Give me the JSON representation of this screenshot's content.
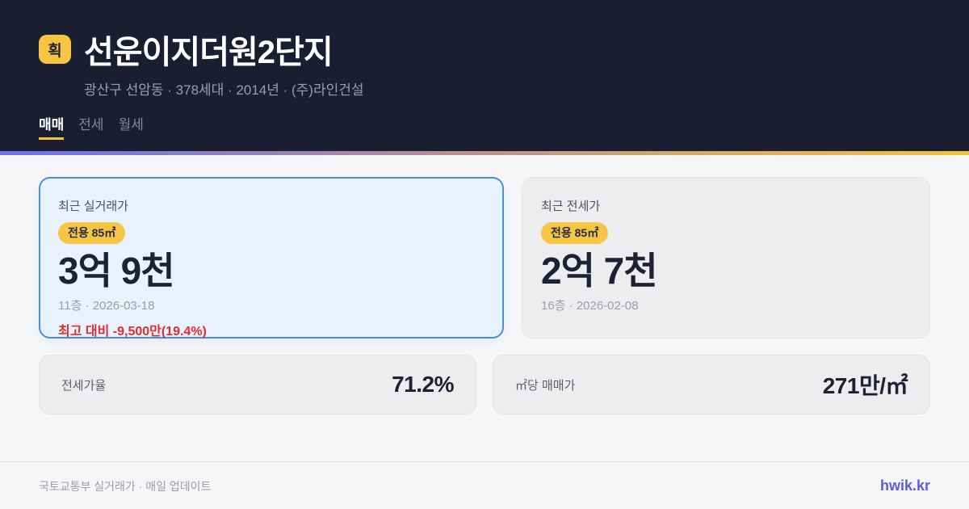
{
  "header": {
    "logo_badge": "획",
    "title": "선운이지더원2단지",
    "subtitle": "광산구 선암동 · 378세대 · 2014년 · (주)라인건설",
    "tabs": [
      {
        "label": "매매",
        "active": true
      },
      {
        "label": "전세",
        "active": false
      },
      {
        "label": "월세",
        "active": false
      }
    ]
  },
  "cards": {
    "sale": {
      "label": "최근 실거래가",
      "area_badge": "전용 85㎡",
      "price": "3억 9천",
      "meta": "11층 · 2026-03-18",
      "delta": "최고 대비 -9,500만(19.4%)"
    },
    "jeonse": {
      "label": "최근 전세가",
      "area_badge": "전용 85㎡",
      "price": "2억 7천",
      "meta": "16층 · 2026-02-08"
    }
  },
  "stats": [
    {
      "label": "전세가율",
      "value": "71.2%"
    },
    {
      "label": "㎡당 매매가",
      "value": "271만/㎡"
    }
  ],
  "footer": {
    "source": "국토교통부 실거래가 · 매일 업데이트",
    "brand": "hwik.kr"
  },
  "colors": {
    "header_bg": "#1b1e31",
    "accent_yellow": "#f5c543",
    "gradient_left": "#6c6ff1",
    "gradient_right": "#f2c43d",
    "primary_card_bg": "#e8f2fc",
    "primary_card_border": "#4a8fd4",
    "negative_red": "#e02d2d",
    "brand_blue": "#5b5ce6",
    "dark_text": "#1e2134"
  }
}
